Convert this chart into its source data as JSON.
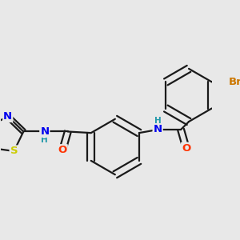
{
  "bg_color": "#e8e8e8",
  "bond_color": "#1a1a1a",
  "bond_width": 1.6,
  "dbo": 0.055,
  "atom_colors": {
    "O": "#ff3300",
    "N": "#0000ee",
    "S": "#cccc00",
    "Br": "#cc7700",
    "H": "#2299aa",
    "C": "#1a1a1a"
  },
  "fs": 9.5,
  "hfs": 7.5
}
